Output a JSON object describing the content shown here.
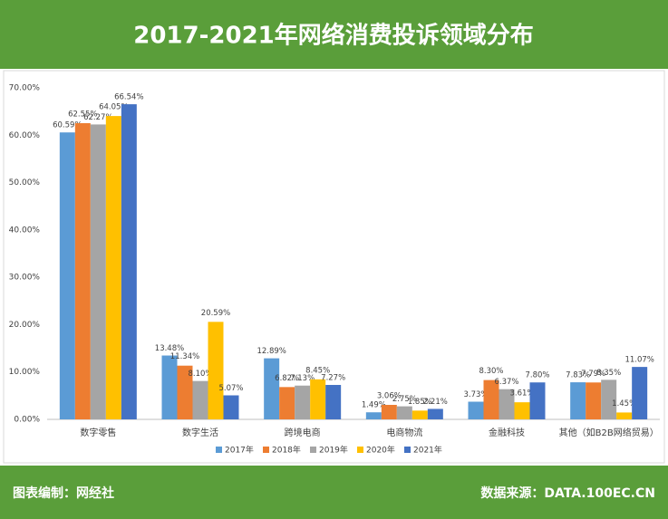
{
  "chart_data": {
    "type": "bar",
    "title": "2017-2021年网络消费投诉领域分布",
    "categories": [
      "数字零售",
      "数字生活",
      "跨境电商",
      "电商物流",
      "金融科技",
      "其他（如B2B网络贸易）"
    ],
    "series": [
      {
        "name": "2017年",
        "color": "#5b9bd5",
        "values": [
          60.59,
          13.48,
          12.89,
          1.49,
          3.73,
          7.83
        ],
        "value_labels": [
          "60.59%",
          "13.48%",
          "12.89%",
          "1.49%",
          "3.73%",
          "7.83%"
        ]
      },
      {
        "name": "2018年",
        "color": "#ed7d31",
        "values": [
          62.55,
          11.34,
          6.82,
          3.06,
          8.3,
          7.79
        ],
        "value_labels": [
          "62.55%",
          "11.34%",
          "6.82%",
          "3.06%",
          "8.30%",
          "7.79%"
        ]
      },
      {
        "name": "2019年",
        "color": "#a5a5a5",
        "values": [
          62.27,
          8.1,
          7.13,
          2.75,
          6.37,
          8.35
        ],
        "value_labels": [
          "62.27%",
          "8.10%",
          "7.13%",
          "2.75%",
          "6.37%",
          "8.35%"
        ]
      },
      {
        "name": "2020年",
        "color": "#ffc000",
        "values": [
          64.05,
          20.59,
          8.45,
          1.85,
          3.61,
          1.45
        ],
        "value_labels": [
          "64.05%",
          "20.59%",
          "8.45%",
          "1.85%",
          "3.61%",
          "1.45%"
        ]
      },
      {
        "name": "2021年",
        "color": "#4472c4",
        "values": [
          66.54,
          5.07,
          7.27,
          2.21,
          7.8,
          11.07
        ],
        "value_labels": [
          "66.54%",
          "5.07%",
          "7.27%",
          "2.21%",
          "7.80%",
          "11.07%"
        ]
      }
    ],
    "ylim": [
      0,
      70
    ],
    "yticks": [
      {
        "value": 0,
        "label": "0.00%"
      },
      {
        "value": 10,
        "label": "10.00%"
      },
      {
        "value": 20,
        "label": "20.00%"
      },
      {
        "value": 30,
        "label": "30.00%"
      },
      {
        "value": 40,
        "label": "40.00%"
      },
      {
        "value": 50,
        "label": "50.00%"
      },
      {
        "value": 60,
        "label": "60.00%"
      },
      {
        "value": 70,
        "label": "70.00%"
      }
    ],
    "grid": false,
    "legend": "bottom"
  },
  "footer": {
    "left": "图表编制：网经社",
    "right": "数据来源：DATA.100EC.CN"
  }
}
